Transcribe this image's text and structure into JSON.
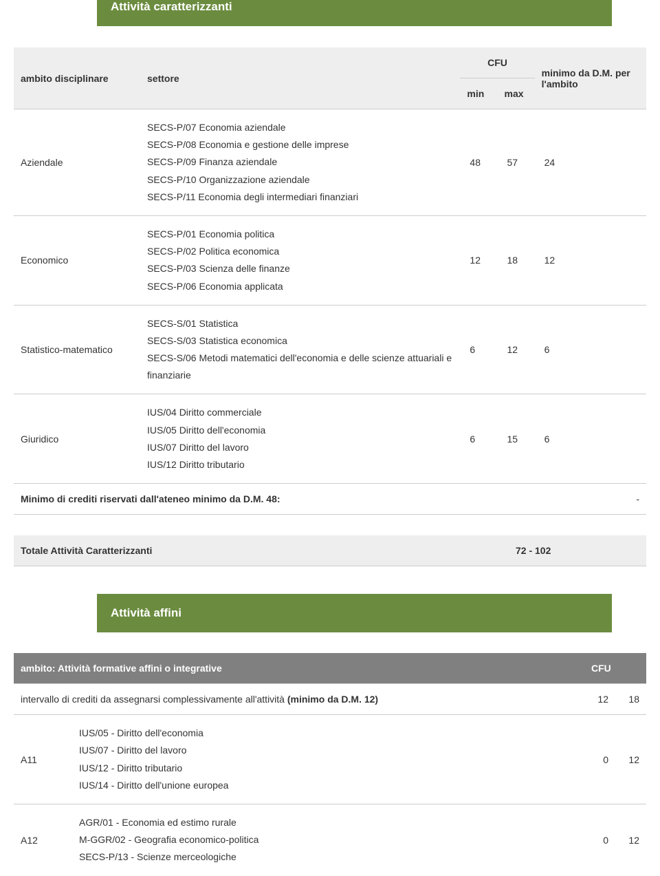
{
  "section1": {
    "title": "Attività caratterizzanti",
    "headers": {
      "ambito": "ambito disciplinare",
      "settore": "settore",
      "cfu": "CFU",
      "min": "min",
      "max": "max",
      "minimo_dm": "minimo da D.M. per l'ambito"
    },
    "rows": [
      {
        "ambito": "Aziendale",
        "settore": "SECS-P/07 Economia aziendale\nSECS-P/08 Economia e gestione delle imprese\nSECS-P/09 Finanza aziendale\nSECS-P/10 Organizzazione aziendale\nSECS-P/11 Economia degli intermediari finanziari",
        "min": "48",
        "max": "57",
        "minimo": "24"
      },
      {
        "ambito": "Economico",
        "settore": "SECS-P/01 Economia politica\nSECS-P/02 Politica economica\nSECS-P/03 Scienza delle finanze\nSECS-P/06 Economia applicata",
        "min": "12",
        "max": "18",
        "minimo": "12"
      },
      {
        "ambito": "Statistico-matematico",
        "settore": "SECS-S/01 Statistica\nSECS-S/03 Statistica economica\nSECS-S/06 Metodi matematici dell'economia e delle scienze attuariali e finanziarie",
        "min": "6",
        "max": "12",
        "minimo": "6"
      },
      {
        "ambito": "Giuridico",
        "settore": "IUS/04 Diritto commerciale\nIUS/05 Diritto dell'economia\nIUS/07 Diritto del lavoro\nIUS/12 Diritto tributario",
        "min": "6",
        "max": "15",
        "minimo": "6"
      }
    ],
    "minimo_row": {
      "label": "Minimo di crediti riservati dall'ateneo minimo da D.M. 48:",
      "value": "-"
    },
    "totale": {
      "label": "Totale Attività Caratterizzanti",
      "value": "72 - 102"
    }
  },
  "section2": {
    "title": "Attività affini",
    "headers": {
      "ambito": "ambito: Attività formative affini o integrative",
      "cfu": "CFU"
    },
    "intervallo": {
      "label": "intervallo di crediti da assegnarsi complessivamente all'attività (minimo da D.M. 12)",
      "min": "12",
      "max": "18"
    },
    "rows": [
      {
        "code": "A11",
        "settore": "IUS/05 - Diritto dell'economia\nIUS/07 - Diritto del lavoro\nIUS/12 - Diritto tributario\nIUS/14 - Diritto dell'unione europea",
        "min": "0",
        "max": "12"
      },
      {
        "code": "A12",
        "settore": "AGR/01 - Economia ed estimo rurale\nM-GGR/02 - Geografia economico-politica\nSECS-P/13 - Scienze merceologiche",
        "min": "0",
        "max": "12"
      }
    ]
  },
  "colors": {
    "header_bg": "#6b8c3f",
    "thead_bg": "#eeeeee",
    "affini_thead_bg": "#808080",
    "border": "#cccccc",
    "text": "#333333"
  }
}
